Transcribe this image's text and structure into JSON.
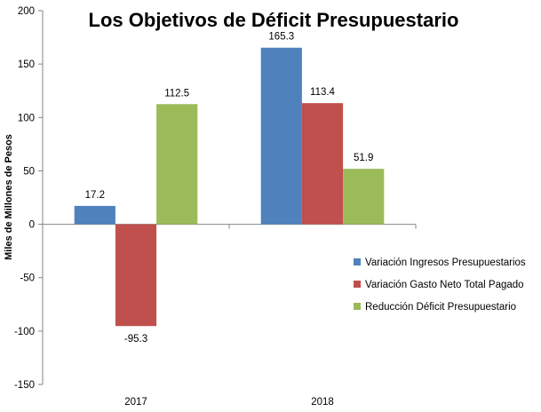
{
  "chart_data": {
    "type": "bar",
    "title": "Los Objetivos de Déficit Presupuestario",
    "ylabel": "Miles de Millones de Pesos",
    "xlabel": "",
    "categories": [
      "2017",
      "2018"
    ],
    "ylim": [
      -150,
      200
    ],
    "yticks": [
      200,
      150,
      100,
      50,
      0,
      -50,
      -100,
      -150
    ],
    "grid": false,
    "legend_position": "right",
    "series": [
      {
        "name": "Variación Ingresos Presupuestarios",
        "color": "#4F81BD",
        "values": [
          17.2,
          165.3
        ],
        "labels": [
          "17.2",
          "165.3"
        ]
      },
      {
        "name": "Variación Gasto Neto Total Pagado",
        "color": "#C0504D",
        "values": [
          -95.3,
          113.4
        ],
        "labels": [
          "-95.3",
          "113.4"
        ]
      },
      {
        "name": "Reducción Déficit Presupuestario",
        "color": "#9BBB59",
        "values": [
          112.5,
          51.9
        ],
        "labels": [
          "112.5",
          "51.9"
        ]
      }
    ]
  }
}
